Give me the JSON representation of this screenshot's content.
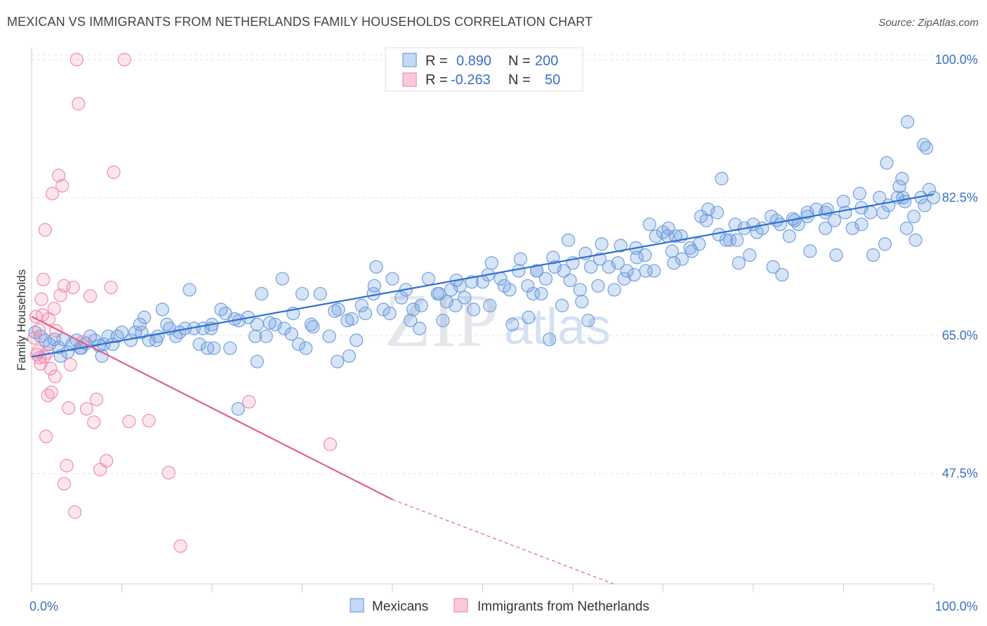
{
  "title": "MEXICAN VS IMMIGRANTS FROM NETHERLANDS FAMILY HOUSEHOLDS CORRELATION CHART",
  "source": "Source: ZipAtlas.com",
  "watermark": {
    "zip": "ZIP",
    "atlas": "atlas"
  },
  "colors": {
    "blue": "#6f9fe0",
    "blue_line": "#2f6fd0",
    "pink": "#f08cae",
    "pink_line": "#e0608f",
    "axis_text": "#3a6fc4"
  },
  "chart_data": {
    "type": "scatter",
    "ylabel": "Family Households",
    "xlim": [
      0,
      100
    ],
    "ylim": [
      33.5,
      101.5
    ],
    "x_tick_labels": [
      "0.0%",
      "100.0%"
    ],
    "y_ticks": [
      {
        "value": 100,
        "label": "100.0%"
      },
      {
        "value": 82.5,
        "label": "82.5%"
      },
      {
        "value": 65,
        "label": "65.0%"
      },
      {
        "value": 47.5,
        "label": "47.5%"
      }
    ],
    "grid": "horizontal dashed",
    "legend": {
      "rows": [
        {
          "r_label": "R =",
          "r_value": "0.890",
          "n_label": "N =",
          "n_value": "200"
        },
        {
          "r_label": "R =",
          "r_value": "-0.263",
          "n_label": "N =",
          "n_value": "50"
        }
      ]
    },
    "series": [
      {
        "name": "Mexicans",
        "trend": {
          "x": [
            0,
            100
          ],
          "y": [
            62.3,
            82.9
          ]
        },
        "points": [
          [
            0.4,
            65.4
          ],
          [
            1,
            64.9
          ],
          [
            1.5,
            64.4
          ],
          [
            2,
            63.9
          ],
          [
            2.5,
            64.5
          ],
          [
            3,
            63.5
          ],
          [
            3.5,
            64.5
          ],
          [
            4,
            62.9
          ],
          [
            4.5,
            63.9
          ],
          [
            5,
            64.4
          ],
          [
            5.5,
            63.4
          ],
          [
            6,
            64
          ],
          [
            6.5,
            64.9
          ],
          [
            7,
            64.4
          ],
          [
            7.5,
            63.7
          ],
          [
            8,
            63.9
          ],
          [
            8.5,
            64.9
          ],
          [
            9,
            63.9
          ],
          [
            9.5,
            64.9
          ],
          [
            10,
            65.4
          ],
          [
            11,
            64.4
          ],
          [
            11.5,
            65.4
          ],
          [
            12,
            66.4
          ],
          [
            12.5,
            67.3
          ],
          [
            13,
            64.4
          ],
          [
            14,
            64.9
          ],
          [
            14.5,
            68.3
          ],
          [
            15,
            66.4
          ],
          [
            16,
            64.9
          ],
          [
            17,
            65.9
          ],
          [
            17.5,
            70.8
          ],
          [
            18,
            65.9
          ],
          [
            19,
            65.9
          ],
          [
            19.5,
            63.4
          ],
          [
            20,
            66.4
          ],
          [
            21,
            68.3
          ],
          [
            21.5,
            67.8
          ],
          [
            22,
            63.4
          ],
          [
            23,
            66.9
          ],
          [
            24,
            67.3
          ],
          [
            25,
            66.4
          ],
          [
            25.5,
            70.3
          ],
          [
            26,
            64.9
          ],
          [
            27,
            66.4
          ],
          [
            28,
            65.9
          ],
          [
            29,
            67.8
          ],
          [
            30,
            70.3
          ],
          [
            31,
            66.4
          ],
          [
            32,
            70.3
          ],
          [
            33,
            64.9
          ],
          [
            34,
            68.3
          ],
          [
            35,
            66.9
          ],
          [
            36,
            64.4
          ],
          [
            37,
            67.8
          ],
          [
            38,
            71.3
          ],
          [
            39,
            68.3
          ],
          [
            40,
            72.2
          ],
          [
            41,
            69.8
          ],
          [
            42,
            66.9
          ],
          [
            43,
            65.9
          ],
          [
            44,
            72.2
          ],
          [
            45,
            70.3
          ],
          [
            46,
            69.3
          ],
          [
            46.5,
            70.8
          ],
          [
            47,
            68.8
          ],
          [
            47.5,
            71.3
          ],
          [
            48,
            69.8
          ],
          [
            49,
            68.3
          ],
          [
            50,
            71.8
          ],
          [
            51,
            74.2
          ],
          [
            52,
            72.2
          ],
          [
            53,
            70.8
          ],
          [
            54,
            73.2
          ],
          [
            55,
            71.3
          ],
          [
            56,
            73.2
          ],
          [
            56.5,
            70.3
          ],
          [
            57,
            72.2
          ],
          [
            58,
            73.7
          ],
          [
            59,
            73.2
          ],
          [
            59.5,
            77.1
          ],
          [
            60,
            74.2
          ],
          [
            61,
            69.3
          ],
          [
            62,
            73.7
          ],
          [
            63,
            74.7
          ],
          [
            64,
            73.7
          ],
          [
            65,
            74.2
          ],
          [
            66,
            73.2
          ],
          [
            67,
            76.1
          ],
          [
            68,
            75.2
          ],
          [
            68.5,
            79.1
          ],
          [
            69,
            73.2
          ],
          [
            70,
            78.1
          ],
          [
            70.5,
            77.6
          ],
          [
            71,
            75.7
          ],
          [
            72,
            77.6
          ],
          [
            73,
            76.1
          ],
          [
            74,
            76.6
          ],
          [
            75,
            81.0
          ],
          [
            76,
            80.6
          ],
          [
            77,
            77.1
          ],
          [
            78,
            79.1
          ],
          [
            79,
            78.6
          ],
          [
            80,
            79.1
          ],
          [
            81,
            78.6
          ],
          [
            82,
            80.1
          ],
          [
            83,
            79.1
          ],
          [
            84,
            77.6
          ],
          [
            85,
            79.1
          ],
          [
            86,
            80.1
          ],
          [
            87,
            81.0
          ],
          [
            88,
            78.6
          ],
          [
            89,
            79.6
          ],
          [
            90,
            82.0
          ],
          [
            91,
            78.6
          ],
          [
            92,
            79.1
          ],
          [
            93,
            80.6
          ],
          [
            94,
            82.5
          ],
          [
            95,
            81.5
          ],
          [
            96,
            82.5
          ],
          [
            96.5,
            84.9
          ],
          [
            97,
            78.6
          ],
          [
            98,
            77.1
          ],
          [
            99,
            81.5
          ],
          [
            99.5,
            83.5
          ],
          [
            100,
            82.5
          ],
          [
            3.2,
            62.4
          ],
          [
            5.4,
            63.4
          ],
          [
            7.8,
            62.4
          ],
          [
            13.8,
            64.4
          ],
          [
            15.3,
            65.9
          ],
          [
            16.4,
            65.4
          ],
          [
            18.6,
            63.9
          ],
          [
            19.9,
            65.9
          ],
          [
            22.5,
            67.1
          ],
          [
            24.8,
            64.9
          ],
          [
            26.4,
            66.6
          ],
          [
            28.8,
            65.2
          ],
          [
            31.2,
            66.1
          ],
          [
            33.6,
            68.1
          ],
          [
            35.5,
            67.1
          ],
          [
            37.9,
            70.3
          ],
          [
            39.7,
            67.8
          ],
          [
            41.5,
            70.8
          ],
          [
            43.2,
            68.8
          ],
          [
            45.2,
            70.3
          ],
          [
            47.1,
            72.0
          ],
          [
            48.8,
            71.8
          ],
          [
            50.6,
            72.7
          ],
          [
            52.4,
            71.3
          ],
          [
            54.2,
            74.7
          ],
          [
            56.0,
            73.2
          ],
          [
            57.8,
            74.9
          ],
          [
            59.7,
            72.0
          ],
          [
            61.4,
            75.4
          ],
          [
            63.2,
            76.6
          ],
          [
            65.3,
            76.4
          ],
          [
            67.1,
            74.9
          ],
          [
            69.2,
            77.6
          ],
          [
            71.4,
            77.6
          ],
          [
            73.2,
            75.7
          ],
          [
            74.8,
            79.6
          ],
          [
            76.2,
            77.8
          ],
          [
            78.2,
            77.1
          ],
          [
            80.4,
            78.1
          ],
          [
            82.6,
            79.6
          ],
          [
            84.4,
            79.8
          ],
          [
            86.0,
            80.6
          ],
          [
            88.2,
            81.0
          ],
          [
            90.2,
            80.6
          ],
          [
            92.0,
            81.2
          ],
          [
            94.4,
            80.6
          ],
          [
            96.8,
            82.0
          ],
          [
            98.6,
            82.5
          ],
          [
            22.9,
            55.7
          ],
          [
            25.0,
            61.7
          ],
          [
            33.9,
            61.7
          ],
          [
            27.8,
            72.2
          ],
          [
            35.2,
            62.4
          ],
          [
            38.2,
            73.7
          ],
          [
            45.6,
            66.9
          ],
          [
            53.3,
            66.4
          ],
          [
            57.4,
            64.5
          ],
          [
            61.7,
            66.9
          ],
          [
            64.6,
            70.8
          ],
          [
            68.1,
            73.2
          ],
          [
            70.6,
            78.6
          ],
          [
            74.2,
            80.1
          ],
          [
            76.5,
            84.9
          ],
          [
            78.4,
            74.2
          ],
          [
            82.2,
            73.7
          ],
          [
            84.6,
            79.6
          ],
          [
            88.0,
            80.6
          ],
          [
            91.8,
            83.0
          ],
          [
            94.8,
            86.9
          ],
          [
            96.2,
            83.9
          ],
          [
            97.1,
            92.1
          ],
          [
            98.9,
            89.2
          ],
          [
            99.2,
            88.8
          ],
          [
            12.2,
            65.4
          ],
          [
            20.2,
            63.4
          ],
          [
            29.6,
            63.9
          ],
          [
            36.6,
            68.8
          ],
          [
            42.3,
            68.3
          ],
          [
            50.8,
            68.8
          ],
          [
            55.6,
            70.3
          ],
          [
            60.8,
            70.8
          ],
          [
            66.8,
            72.7
          ],
          [
            72.1,
            74.7
          ],
          [
            79.6,
            75.2
          ],
          [
            86.3,
            75.7
          ],
          [
            93.3,
            75.2
          ],
          [
            96.6,
            82.5
          ],
          [
            62.8,
            71.3
          ],
          [
            65.7,
            72.2
          ],
          [
            71.2,
            74.2
          ],
          [
            77.4,
            77.1
          ],
          [
            83.2,
            72.7
          ],
          [
            89.2,
            75.2
          ],
          [
            94.6,
            76.6
          ],
          [
            97.8,
            80.1
          ],
          [
            30.4,
            63.4
          ],
          [
            55.1,
            67.3
          ],
          [
            58.8,
            68.8
          ]
        ]
      },
      {
        "name": "Immigrants from Netherlands",
        "trend": {
          "x": [
            0,
            40
          ],
          "y": [
            67.4,
            44.2
          ]
        },
        "trend_dashed": {
          "x": [
            40,
            64.5
          ],
          "y": [
            44.2,
            33.5
          ]
        },
        "points": [
          [
            0.3,
            64.7
          ],
          [
            0.5,
            67.4
          ],
          [
            0.7,
            63.0
          ],
          [
            0.9,
            62.2
          ],
          [
            1.1,
            69.6
          ],
          [
            1.3,
            72.1
          ],
          [
            1.5,
            78.4
          ],
          [
            1.7,
            62.8
          ],
          [
            1.9,
            67.1
          ],
          [
            2.1,
            60.8
          ],
          [
            2.3,
            83.0
          ],
          [
            2.5,
            68.4
          ],
          [
            2.7,
            65.6
          ],
          [
            3.0,
            85.3
          ],
          [
            3.2,
            70.1
          ],
          [
            3.4,
            84.0
          ],
          [
            3.6,
            71.3
          ],
          [
            3.9,
            48.5
          ],
          [
            4.1,
            55.8
          ],
          [
            4.3,
            61.3
          ],
          [
            4.6,
            71.1
          ],
          [
            4.8,
            42.6
          ],
          [
            5.0,
            100.0
          ],
          [
            5.2,
            94.4
          ],
          [
            5.7,
            64.2
          ],
          [
            6.1,
            55.7
          ],
          [
            6.5,
            70.0
          ],
          [
            6.9,
            54.0
          ],
          [
            7.2,
            56.9
          ],
          [
            7.6,
            48.0
          ],
          [
            8.3,
            49.1
          ],
          [
            8.8,
            71.1
          ],
          [
            9.1,
            85.7
          ],
          [
            10.3,
            100.0
          ],
          [
            10.8,
            54.1
          ],
          [
            13.0,
            54.2
          ],
          [
            15.2,
            47.6
          ],
          [
            16.5,
            38.3
          ],
          [
            24.1,
            56.6
          ],
          [
            33.1,
            51.2
          ],
          [
            0.6,
            62.6
          ],
          [
            1.0,
            61.4
          ],
          [
            1.4,
            62.3
          ],
          [
            1.8,
            57.4
          ],
          [
            2.2,
            57.8
          ],
          [
            2.6,
            59.8
          ],
          [
            0.8,
            65.7
          ],
          [
            1.2,
            67.6
          ],
          [
            1.6,
            52.2
          ],
          [
            3.6,
            46.2
          ]
        ]
      }
    ]
  }
}
